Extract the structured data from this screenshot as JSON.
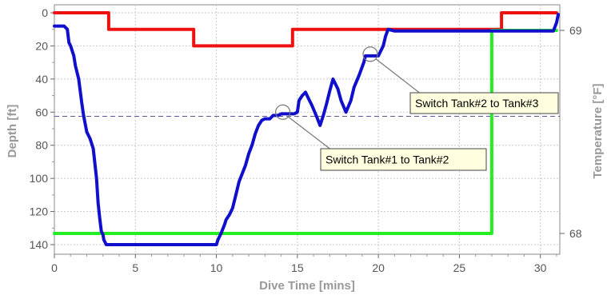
{
  "chart_data": {
    "type": "line",
    "xlabel": "Dive Time [mins]",
    "ylabel": "Depth [ft]",
    "y2label": "Temperature [°F]",
    "xlim": [
      0,
      31.2
    ],
    "ylim": [
      0,
      145
    ],
    "y_inverted": true,
    "y2_ticks": [
      {
        "value": 68,
        "label": "68"
      },
      {
        "value": 69,
        "label": "69"
      }
    ],
    "y2_lim": [
      67.95,
      69.16
    ],
    "x_ticks": [
      0,
      5,
      10,
      15,
      20,
      25,
      30
    ],
    "y_ticks": [
      0,
      20,
      40,
      60,
      80,
      100,
      120,
      140
    ],
    "grid": true,
    "reference_line_depth": 62.5,
    "series": [
      {
        "key": "depth",
        "color": "#1010cc",
        "axis": "depth",
        "x": [
          0,
          0.6,
          0.8,
          0.9,
          1.0,
          1.2,
          1.3,
          1.5,
          1.7,
          1.8,
          2.0,
          2.2,
          2.4,
          2.6,
          2.7,
          2.8,
          2.85,
          2.9,
          3.0,
          3.05,
          3.1,
          3.15,
          3.2,
          3.3,
          3.4,
          4.0,
          6.0,
          8.0,
          9.5,
          10.0,
          10.1,
          10.3,
          10.5,
          10.6,
          10.8,
          11.0,
          11.2,
          11.4,
          11.6,
          11.8,
          12.0,
          12.2,
          12.4,
          12.6,
          12.8,
          13.0,
          13.1,
          13.3,
          13.5,
          13.8,
          14.0,
          14.5,
          14.8,
          15.0,
          15.1,
          15.3,
          15.5,
          15.7,
          15.9,
          16.2,
          16.4,
          16.6,
          16.8,
          17.0,
          17.2,
          17.5,
          17.7,
          18.0,
          18.3,
          18.5,
          18.8,
          19.1,
          19.2,
          19.5,
          19.8,
          20.0,
          20.3,
          20.45,
          20.6,
          21.0,
          25.0,
          27.0,
          30.0,
          30.8,
          31.0,
          31.1
        ],
        "y": [
          8,
          8,
          10,
          18,
          20,
          26,
          32,
          40,
          55,
          62,
          72,
          76,
          82,
          100,
          115,
          124,
          128,
          132,
          134,
          137,
          138,
          139,
          140,
          140,
          140,
          140,
          140,
          140,
          140,
          140,
          137,
          133,
          128,
          125,
          122,
          118,
          110,
          102,
          97,
          92,
          85,
          80,
          73,
          68,
          65,
          64,
          64,
          64,
          62,
          62,
          61,
          61,
          61,
          60,
          53,
          50,
          48,
          52,
          56,
          63,
          68,
          62,
          55,
          47,
          40,
          46,
          53,
          60,
          53,
          45,
          38,
          30,
          26,
          26,
          26,
          26,
          20,
          14,
          10,
          11,
          11,
          11,
          11,
          11,
          6,
          1
        ]
      },
      {
        "key": "tank",
        "color": "#ee1111",
        "axis": "depth",
        "step": true,
        "x": [
          0,
          3.35,
          8.6,
          14.7,
          27.6,
          31.0
        ],
        "y": [
          0,
          10,
          20,
          10,
          0,
          0
        ]
      },
      {
        "key": "temperature",
        "color": "#22ee22",
        "axis": "temperature",
        "step": true,
        "x": [
          0,
          27.0,
          31.0
        ],
        "y": [
          68.0,
          69.0,
          69.0
        ]
      }
    ],
    "annotations": [
      {
        "text": "Switch Tank#2 to Tank#3",
        "x": 19.5,
        "y": 25
      },
      {
        "text": "Switch Tank#1 to Tank#2",
        "x": 14.1,
        "y": 60
      }
    ]
  }
}
